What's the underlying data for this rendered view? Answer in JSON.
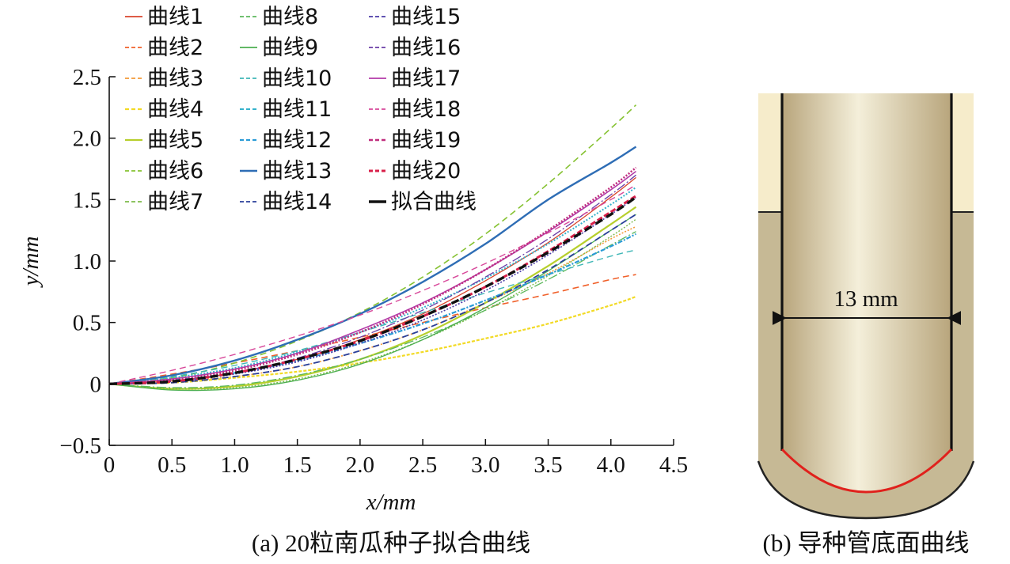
{
  "chart_data": {
    "type": "line",
    "xlabel": "x/mm",
    "ylabel": "y/mm",
    "xlim": [
      0,
      4.5
    ],
    "ylim": [
      -0.5,
      2.5
    ],
    "xticks": [
      "0",
      "0.5",
      "1.0",
      "1.5",
      "2.0",
      "2.5",
      "3.0",
      "3.5",
      "4.0",
      "4.5"
    ],
    "yticks": [
      "−0.5",
      "0",
      "0.5",
      "1.0",
      "1.5",
      "2.0",
      "2.5"
    ],
    "grid": false,
    "legend_position": "top-left",
    "x": [
      0,
      0.5,
      1.0,
      1.5,
      2.0,
      2.5,
      3.0,
      3.5,
      4.0,
      4.2
    ],
    "series": [
      {
        "name": "曲线1",
        "color": "#d9452b",
        "dash": "solid",
        "width": 1.3,
        "values": [
          0,
          0.025,
          0.09,
          0.2,
          0.36,
          0.57,
          0.84,
          1.15,
          1.52,
          1.68
        ]
      },
      {
        "name": "曲线2",
        "color": "#f0602a",
        "dash": "8 5",
        "width": 1.6,
        "values": [
          0,
          0.08,
          0.17,
          0.27,
          0.38,
          0.5,
          0.62,
          0.73,
          0.85,
          0.89
        ]
      },
      {
        "name": "曲线3",
        "color": "#f29a38",
        "dash": "2 2",
        "width": 1.6,
        "values": [
          0,
          0.02,
          0.06,
          0.14,
          0.27,
          0.44,
          0.66,
          0.9,
          1.18,
          1.28
        ]
      },
      {
        "name": "曲线4",
        "color": "#f2da25",
        "dash": "4 2",
        "width": 2.2,
        "values": [
          0,
          0.01,
          0.05,
          0.1,
          0.17,
          0.26,
          0.37,
          0.49,
          0.64,
          0.71
        ]
      },
      {
        "name": "曲线5",
        "color": "#b7cf2c",
        "dash": "solid",
        "width": 2.2,
        "values": [
          0,
          -0.04,
          -0.02,
          0.06,
          0.2,
          0.4,
          0.66,
          0.96,
          1.3,
          1.44
        ]
      },
      {
        "name": "曲线6",
        "color": "#86c232",
        "dash": "8 5",
        "width": 1.6,
        "values": [
          0,
          0.05,
          0.17,
          0.35,
          0.58,
          0.87,
          1.22,
          1.63,
          2.08,
          2.27
        ]
      },
      {
        "name": "曲线7",
        "color": "#7dbb4a",
        "dash": "2 2",
        "width": 1.4,
        "values": [
          0,
          -0.04,
          -0.03,
          0.04,
          0.17,
          0.36,
          0.6,
          0.88,
          1.2,
          1.34
        ]
      },
      {
        "name": "曲线8",
        "color": "#5cb85c",
        "dash": "12 3 2 3",
        "width": 1.3,
        "values": [
          0,
          -0.03,
          -0.01,
          0.07,
          0.2,
          0.38,
          0.6,
          0.85,
          1.13,
          1.24
        ]
      },
      {
        "name": "曲线9",
        "color": "#4caf50",
        "dash": "solid",
        "width": 1.3,
        "values": [
          0,
          -0.05,
          -0.04,
          0.03,
          0.16,
          0.36,
          0.62,
          0.92,
          1.25,
          1.38
        ]
      },
      {
        "name": "曲线10",
        "color": "#3fb6b6",
        "dash": "8 5",
        "width": 1.4,
        "values": [
          0,
          0.06,
          0.15,
          0.27,
          0.42,
          0.58,
          0.74,
          0.89,
          1.04,
          1.09
        ]
      },
      {
        "name": "曲线11",
        "color": "#35b2cc",
        "dash": "2 2",
        "width": 2.0,
        "values": [
          0,
          0.05,
          0.13,
          0.26,
          0.42,
          0.62,
          0.86,
          1.14,
          1.46,
          1.6
        ]
      },
      {
        "name": "曲线12",
        "color": "#2a9bd6",
        "dash": "6 2 2 2",
        "width": 2.2,
        "values": [
          0,
          0.03,
          0.09,
          0.19,
          0.33,
          0.49,
          0.68,
          0.89,
          1.12,
          1.22
        ]
      },
      {
        "name": "曲线13",
        "color": "#2e6db5",
        "dash": "solid",
        "width": 2.4,
        "values": [
          0,
          0.07,
          0.19,
          0.36,
          0.57,
          0.83,
          1.14,
          1.5,
          1.8,
          1.93
        ]
      },
      {
        "name": "曲线14",
        "color": "#2a3f9a",
        "dash": "8 5",
        "width": 1.8,
        "values": [
          0,
          0.01,
          0.06,
          0.14,
          0.27,
          0.44,
          0.66,
          0.93,
          1.25,
          1.38
        ]
      },
      {
        "name": "曲线15",
        "color": "#4b3ba8",
        "dash": "2 2",
        "width": 1.6,
        "values": [
          0,
          0.02,
          0.08,
          0.18,
          0.33,
          0.52,
          0.76,
          1.05,
          1.38,
          1.52
        ]
      },
      {
        "name": "曲线16",
        "color": "#6a3ca6",
        "dash": "12 3 2 3",
        "width": 1.3,
        "values": [
          0,
          0.02,
          0.09,
          0.21,
          0.38,
          0.6,
          0.87,
          1.18,
          1.54,
          1.7
        ]
      },
      {
        "name": "曲线17",
        "color": "#b23aa8",
        "dash": "solid",
        "width": 1.6,
        "values": [
          0,
          0.04,
          0.12,
          0.25,
          0.44,
          0.66,
          0.93,
          1.24,
          1.58,
          1.73
        ]
      },
      {
        "name": "曲线18",
        "color": "#d8489a",
        "dash": "8 5",
        "width": 1.4,
        "values": [
          0,
          0.11,
          0.24,
          0.39,
          0.56,
          0.76,
          0.98,
          1.23,
          1.5,
          1.62
        ]
      },
      {
        "name": "曲线19",
        "color": "#c02e7e",
        "dash": "2 2",
        "width": 2.6,
        "values": [
          0,
          0.03,
          0.11,
          0.24,
          0.42,
          0.65,
          0.93,
          1.25,
          1.6,
          1.76
        ]
      },
      {
        "name": "曲线20",
        "color": "#d8204a",
        "dash": "7 3",
        "width": 3.0,
        "values": [
          0,
          0.02,
          0.09,
          0.2,
          0.35,
          0.55,
          0.79,
          1.08,
          1.4,
          1.53
        ]
      },
      {
        "name": "拟合曲线",
        "color": "#111111",
        "dash": "10 6",
        "width": 3.4,
        "values": [
          0,
          0.02,
          0.09,
          0.2,
          0.35,
          0.55,
          0.79,
          1.07,
          1.38,
          1.52
        ]
      }
    ]
  },
  "figure_b": {
    "dimension_label": "13 mm",
    "colors": {
      "wall_light": "#f6eccb",
      "wall_dark": "#c6b995",
      "tube_center": "#f4efda",
      "tube_edge": "#b8a57c",
      "bottom_curve": "#e0211c"
    }
  },
  "captions": {
    "a": "(a) 20粒南瓜种子拟合曲线",
    "b": "(b) 导种管底面曲线"
  }
}
